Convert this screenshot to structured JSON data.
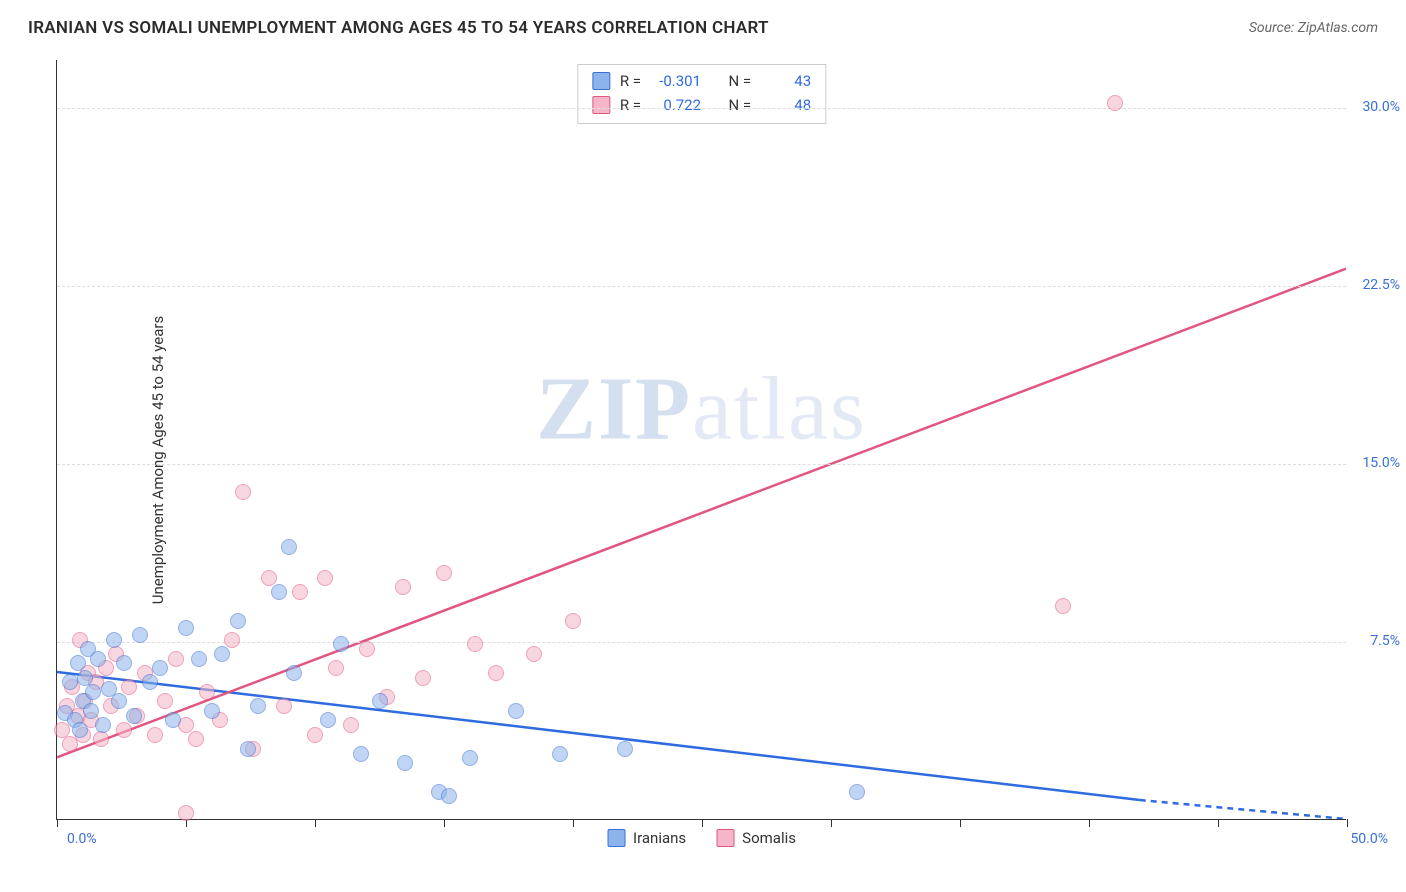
{
  "header": {
    "title": "IRANIAN VS SOMALI UNEMPLOYMENT AMONG AGES 45 TO 54 YEARS CORRELATION CHART",
    "source_label": "Source:",
    "source_name": "ZipAtlas.com"
  },
  "chart": {
    "type": "scatter",
    "y_axis_label": "Unemployment Among Ages 45 to 54 years",
    "xlim": [
      0,
      50
    ],
    "ylim": [
      0,
      32
    ],
    "y_ticks": [
      7.5,
      15.0,
      22.5,
      30.0
    ],
    "y_tick_labels": [
      "7.5%",
      "15.0%",
      "22.5%",
      "30.0%"
    ],
    "x_ticks": [
      0,
      5,
      10,
      15,
      20,
      25,
      30,
      35,
      40,
      45,
      50
    ],
    "x_start_label": "0.0%",
    "x_end_label": "50.0%",
    "background_color": "#ffffff",
    "grid_color": "#dddddd",
    "axis_color": "#333333",
    "tick_label_color": "#3b6fd6",
    "marker_radius": 8,
    "marker_opacity": 0.55,
    "watermark_text_bold": "ZIP",
    "watermark_text_light": "atlas",
    "series": {
      "iranians": {
        "label": "Iranians",
        "fill_color": "#8cb4ea",
        "stroke_color": "#3b6fd6",
        "R": "-0.301",
        "N": "43",
        "trend": {
          "x1": 0,
          "y1": 6.2,
          "x2": 42,
          "y2": 0.8,
          "dash_x2": 50,
          "dash_y2": 0,
          "color": "#2e6be0",
          "width": 2.5
        },
        "points": [
          [
            0.3,
            4.5
          ],
          [
            0.5,
            5.8
          ],
          [
            0.7,
            4.2
          ],
          [
            0.8,
            6.6
          ],
          [
            0.9,
            3.8
          ],
          [
            1.0,
            5.0
          ],
          [
            1.1,
            6.0
          ],
          [
            1.2,
            7.2
          ],
          [
            1.3,
            4.6
          ],
          [
            1.4,
            5.4
          ],
          [
            1.6,
            6.8
          ],
          [
            1.8,
            4.0
          ],
          [
            2.0,
            5.5
          ],
          [
            2.2,
            7.6
          ],
          [
            2.4,
            5.0
          ],
          [
            2.6,
            6.6
          ],
          [
            3.0,
            4.4
          ],
          [
            3.2,
            7.8
          ],
          [
            3.6,
            5.8
          ],
          [
            4.0,
            6.4
          ],
          [
            4.5,
            4.2
          ],
          [
            5.0,
            8.1
          ],
          [
            5.5,
            6.8
          ],
          [
            6.0,
            4.6
          ],
          [
            6.4,
            7.0
          ],
          [
            7.0,
            8.4
          ],
          [
            7.4,
            3.0
          ],
          [
            7.8,
            4.8
          ],
          [
            8.6,
            9.6
          ],
          [
            9.0,
            11.5
          ],
          [
            9.2,
            6.2
          ],
          [
            10.5,
            4.2
          ],
          [
            11.0,
            7.4
          ],
          [
            11.8,
            2.8
          ],
          [
            12.5,
            5.0
          ],
          [
            13.5,
            2.4
          ],
          [
            14.8,
            1.2
          ],
          [
            15.2,
            1.0
          ],
          [
            16.0,
            2.6
          ],
          [
            17.8,
            4.6
          ],
          [
            19.5,
            2.8
          ],
          [
            22.0,
            3.0
          ],
          [
            31.0,
            1.2
          ]
        ]
      },
      "somalis": {
        "label": "Somalis",
        "fill_color": "#f4b6c8",
        "stroke_color": "#e2557f",
        "R": "0.722",
        "N": "48",
        "trend": {
          "x1": 0,
          "y1": 2.6,
          "x2": 50,
          "y2": 23.2,
          "color": "#e2557f",
          "width": 2.5
        },
        "points": [
          [
            0.2,
            3.8
          ],
          [
            0.4,
            4.8
          ],
          [
            0.5,
            3.2
          ],
          [
            0.6,
            5.6
          ],
          [
            0.8,
            4.4
          ],
          [
            0.9,
            7.6
          ],
          [
            1.0,
            3.6
          ],
          [
            1.1,
            5.0
          ],
          [
            1.2,
            6.2
          ],
          [
            1.3,
            4.2
          ],
          [
            1.5,
            5.8
          ],
          [
            1.7,
            3.4
          ],
          [
            1.9,
            6.4
          ],
          [
            2.1,
            4.8
          ],
          [
            2.3,
            7.0
          ],
          [
            2.6,
            3.8
          ],
          [
            2.8,
            5.6
          ],
          [
            3.1,
            4.4
          ],
          [
            3.4,
            6.2
          ],
          [
            3.8,
            3.6
          ],
          [
            4.2,
            5.0
          ],
          [
            4.6,
            6.8
          ],
          [
            5.0,
            4.0
          ],
          [
            5.4,
            3.4
          ],
          [
            5.8,
            5.4
          ],
          [
            6.3,
            4.2
          ],
          [
            6.8,
            7.6
          ],
          [
            7.2,
            13.8
          ],
          [
            7.6,
            3.0
          ],
          [
            8.2,
            10.2
          ],
          [
            8.8,
            4.8
          ],
          [
            9.4,
            9.6
          ],
          [
            10.0,
            3.6
          ],
          [
            10.4,
            10.2
          ],
          [
            10.8,
            6.4
          ],
          [
            11.4,
            4.0
          ],
          [
            12.0,
            7.2
          ],
          [
            12.8,
            5.2
          ],
          [
            13.4,
            9.8
          ],
          [
            14.2,
            6.0
          ],
          [
            15.0,
            10.4
          ],
          [
            16.2,
            7.4
          ],
          [
            17.0,
            6.2
          ],
          [
            18.5,
            7.0
          ],
          [
            20.0,
            8.4
          ],
          [
            39.0,
            9.0
          ],
          [
            41.0,
            30.2
          ],
          [
            5.0,
            0.3
          ]
        ]
      }
    },
    "legend": {
      "stats_labels": {
        "R": "R =",
        "N": "N ="
      }
    }
  }
}
